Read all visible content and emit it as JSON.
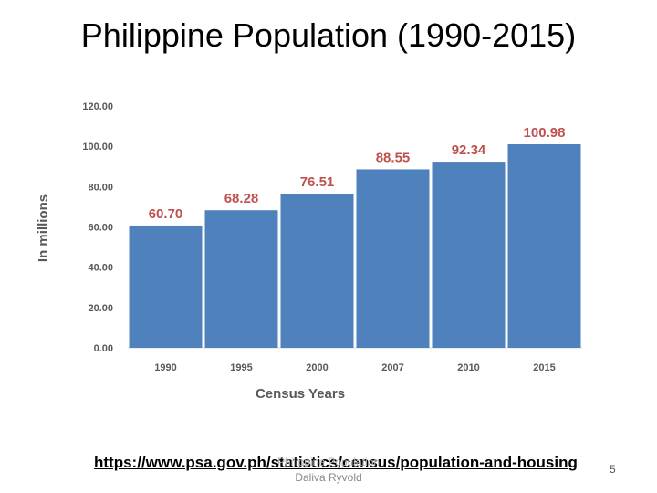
{
  "slide": {
    "title": "Philippine Population (1990-2015)",
    "source_link": "https://www.psa.gov.ph/statistics/census/population-and-housing",
    "footer_line1": "Philippine Population",
    "footer_line2": "Daliva Ryvold",
    "page_number": "5"
  },
  "colors": {
    "bar": "#4f81bd",
    "label": "#c0504d",
    "axis_text": "#595959",
    "gridline": "#d9d9d9"
  },
  "chart_data": {
    "type": "bar",
    "title": "",
    "xlabel": "Census Years",
    "ylabel": "In millions",
    "categories": [
      "1990",
      "1995",
      "2000",
      "2007",
      "2010",
      "2015"
    ],
    "values": [
      60.7,
      68.28,
      76.51,
      88.55,
      92.34,
      100.98
    ],
    "data_labels": [
      "60.70",
      "68.28",
      "76.51",
      "88.55",
      "92.34",
      "100.98"
    ],
    "ylim": [
      0,
      120
    ],
    "yticks": [
      "0.00",
      "20.00",
      "40.00",
      "60.00",
      "80.00",
      "100.00",
      "120.00"
    ],
    "grid": false,
    "legend": "none"
  }
}
